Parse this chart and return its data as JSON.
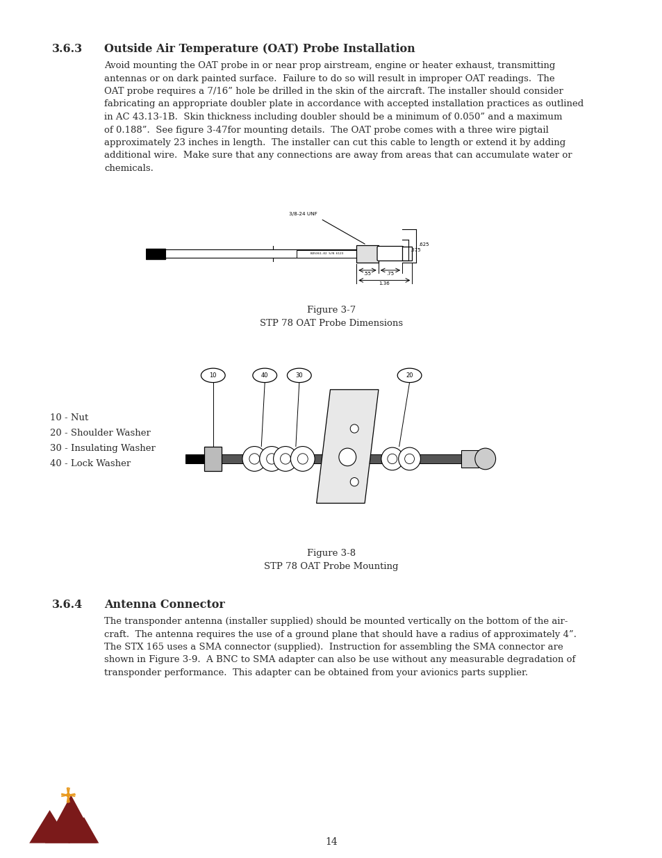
{
  "page_bg": "#ffffff",
  "text_color": "#2a2a2a",
  "section_number": "3.6.3",
  "section_title": "Outside Air Temperature (OAT) Probe Installation",
  "section_body_lines": [
    "Avoid mounting the OAT probe in or near prop airstream, engine or heater exhaust, transmitting",
    "antennas or on dark painted surface.  Failure to do so will result in improper OAT readings.  The",
    "OAT probe requires a 7/16” hole be drilled in the skin of the aircraft. The installer should consider",
    "fabricating an appropriate doubler plate in accordance with accepted installation practices as outlined",
    "in AC 43.13-1B.  Skin thickness including doubler should be a minimum of 0.050” and a maximum",
    "of 0.188”.  See figure 3-47for mounting details.  The OAT probe comes with a three wire pigtail",
    "approximately 23 inches in length.  The installer can cut this cable to length or extend it by adding",
    "additional wire.  Make sure that any connections are away from areas that can accumulate water or",
    "chemicals."
  ],
  "fig1_caption1": "Figure 3-7",
  "fig1_caption2": "STP 78 OAT Probe Dimensions",
  "fig2_legend": [
    "10 - Nut",
    "20 - Shoulder Washer",
    "30 - Insulating Washer",
    "40 - Lock Washer"
  ],
  "fig2_caption1": "Figure 3-8",
  "fig2_caption2": "STP 78 OAT Probe Mounting",
  "section2_number": "3.6.4",
  "section2_title": "Antenna Connector",
  "section2_body_lines": [
    "The transponder antenna (installer supplied) should be mounted vertically on the bottom of the air-",
    "craft.  The antenna requires the use of a ground plane that should have a radius of approximately 4”.",
    "The STX 165 uses a SMA connector (supplied).  Instruction for assembling the SMA connector are",
    "shown in Figure 3-9.  A BNC to SMA adapter can also be use without any measurable degradation of",
    "transponder performance.  This adapter can be obtained from your avionics parts supplier."
  ],
  "page_number": "14"
}
